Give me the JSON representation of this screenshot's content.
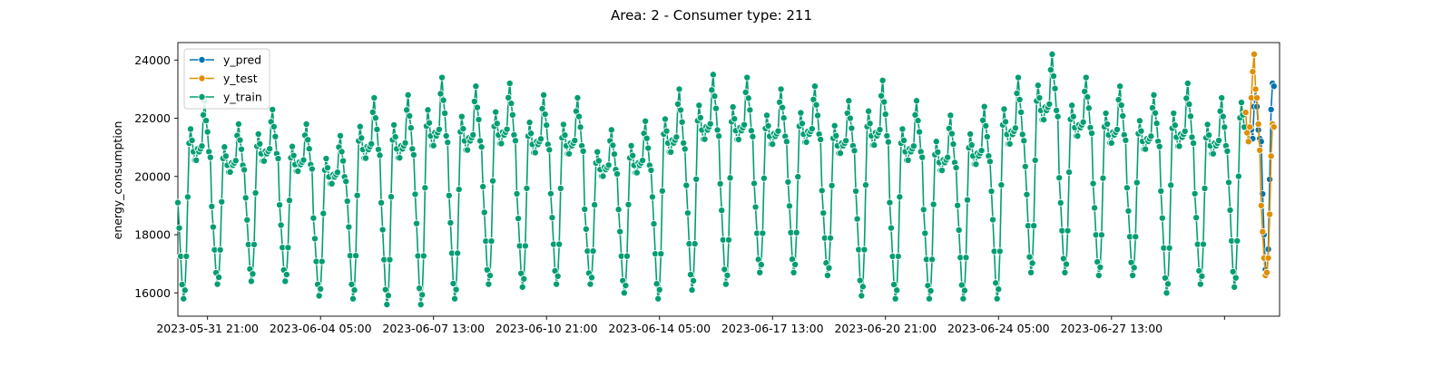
{
  "chart_data": {
    "type": "line",
    "title": "Area: 2 - Consumer type: 211",
    "xlabel": "",
    "ylabel": "energy_consumption",
    "x_ticks": [
      "2023-05-31 21:00",
      "2023-06-04 05:00",
      "2023-06-07 13:00",
      "2023-06-10 21:00",
      "2023-06-14 05:00",
      "2023-06-17 13:00",
      "2023-06-20 21:00",
      "2023-06-24 05:00",
      "2023-06-27 13:00",
      ""
    ],
    "y_ticks": [
      16000,
      18000,
      20000,
      22000,
      24000
    ],
    "ylim": [
      15200,
      24600
    ],
    "x_range": [
      "2023-05-31 00:00",
      "2023-07-02 12:00"
    ],
    "grid": false,
    "legend_position": "top-left",
    "daily_profile": [
      19200,
      18300,
      17300,
      16300,
      15800,
      16100,
      17300,
      19400,
      21300,
      21800,
      21400,
      21000,
      20700,
      20700,
      21100,
      21000,
      21100,
      21200,
      22300,
      22800,
      22100,
      21700,
      21000,
      20800
    ],
    "daily_scale": [
      {
        "date": "2023-05-31",
        "max": 22600,
        "min": 15800
      },
      {
        "date": "2023-06-01",
        "max": 21800,
        "min": 16300
      },
      {
        "date": "2023-06-02",
        "max": 22300,
        "min": 16400
      },
      {
        "date": "2023-06-03",
        "max": 21800,
        "min": 16400
      },
      {
        "date": "2023-06-04",
        "max": 21400,
        "min": 15900
      },
      {
        "date": "2023-06-05",
        "max": 22700,
        "min": 15800
      },
      {
        "date": "2023-06-06",
        "max": 22800,
        "min": 15600
      },
      {
        "date": "2023-06-07",
        "max": 23400,
        "min": 15600
      },
      {
        "date": "2023-06-08",
        "max": 23100,
        "min": 15800
      },
      {
        "date": "2023-06-09",
        "max": 23200,
        "min": 16300
      },
      {
        "date": "2023-06-10",
        "max": 22800,
        "min": 16200
      },
      {
        "date": "2023-06-11",
        "max": 22700,
        "min": 16300
      },
      {
        "date": "2023-06-12",
        "max": 21600,
        "min": 16300
      },
      {
        "date": "2023-06-13",
        "max": 21900,
        "min": 16000
      },
      {
        "date": "2023-06-14",
        "max": 23000,
        "min": 15800
      },
      {
        "date": "2023-06-15",
        "max": 23500,
        "min": 16100
      },
      {
        "date": "2023-06-16",
        "max": 23400,
        "min": 16300
      },
      {
        "date": "2023-06-17",
        "max": 23000,
        "min": 16700
      },
      {
        "date": "2023-06-18",
        "max": 23100,
        "min": 16700
      },
      {
        "date": "2023-06-19",
        "max": 22600,
        "min": 16600
      },
      {
        "date": "2023-06-20",
        "max": 23300,
        "min": 15900
      },
      {
        "date": "2023-06-21",
        "max": 22600,
        "min": 15800
      },
      {
        "date": "2023-06-22",
        "max": 22100,
        "min": 15800
      },
      {
        "date": "2023-06-23",
        "max": 22400,
        "min": 15800
      },
      {
        "date": "2023-06-24",
        "max": 23400,
        "min": 15800
      },
      {
        "date": "2023-06-25",
        "max": 24200,
        "min": 16700
      },
      {
        "date": "2023-06-26",
        "max": 23400,
        "min": 16700
      },
      {
        "date": "2023-06-27",
        "max": 23100,
        "min": 16600
      },
      {
        "date": "2023-06-28",
        "max": 22800,
        "min": 16600
      },
      {
        "date": "2023-06-29",
        "max": 23200,
        "min": 16000
      },
      {
        "date": "2023-06-30",
        "max": 22700,
        "min": 16300
      },
      {
        "date": "2023-07-01",
        "max": 23600,
        "min": 16200
      },
      {
        "date": "2023-07-02",
        "max": 23700,
        "min": 16000
      }
    ],
    "series": [
      {
        "name": "y_pred",
        "color": "#0173b2",
        "x": [
          "2023-07-01 16:00",
          "2023-07-01 17:00",
          "2023-07-01 18:00",
          "2023-07-01 19:00",
          "2023-07-01 20:00",
          "2023-07-01 21:00",
          "2023-07-01 22:00",
          "2023-07-01 23:00",
          "2023-07-02 00:00",
          "2023-07-02 01:00",
          "2023-07-02 02:00",
          "2023-07-02 03:00",
          "2023-07-02 04:00",
          "2023-07-02 05:00",
          "2023-07-02 06:00",
          "2023-07-02 07:00",
          "2023-07-02 08:00"
        ],
        "values": [
          21600,
          21300,
          22400,
          23000,
          22400,
          21600,
          21300,
          21200,
          19400,
          18000,
          16800,
          16700,
          17500,
          19900,
          22300,
          23200,
          23100
        ]
      },
      {
        "name": "y_test",
        "color": "#de8f05",
        "x": [
          "2023-07-01 12:00",
          "2023-07-01 13:00",
          "2023-07-01 14:00",
          "2023-07-01 15:00",
          "2023-07-01 16:00",
          "2023-07-01 17:00",
          "2023-07-01 18:00",
          "2023-07-01 19:00",
          "2023-07-01 20:00",
          "2023-07-01 21:00",
          "2023-07-01 22:00",
          "2023-07-01 23:00",
          "2023-07-02 00:00",
          "2023-07-02 01:00",
          "2023-07-02 02:00",
          "2023-07-02 03:00",
          "2023-07-02 04:00",
          "2023-07-02 05:00",
          "2023-07-02 06:00",
          "2023-07-02 07:00",
          "2023-07-02 08:00"
        ],
        "values": [
          22200,
          21500,
          21200,
          21700,
          22700,
          23600,
          24200,
          23000,
          22700,
          21800,
          20900,
          19000,
          18100,
          17200,
          16600,
          16700,
          17200,
          18700,
          20700,
          21800,
          21700
        ]
      },
      {
        "name": "y_train",
        "color": "#029e73",
        "x_start": "2023-05-31 00:00",
        "x_end": "2023-07-01 11:00",
        "step": "1 hour",
        "values": []
      }
    ]
  }
}
